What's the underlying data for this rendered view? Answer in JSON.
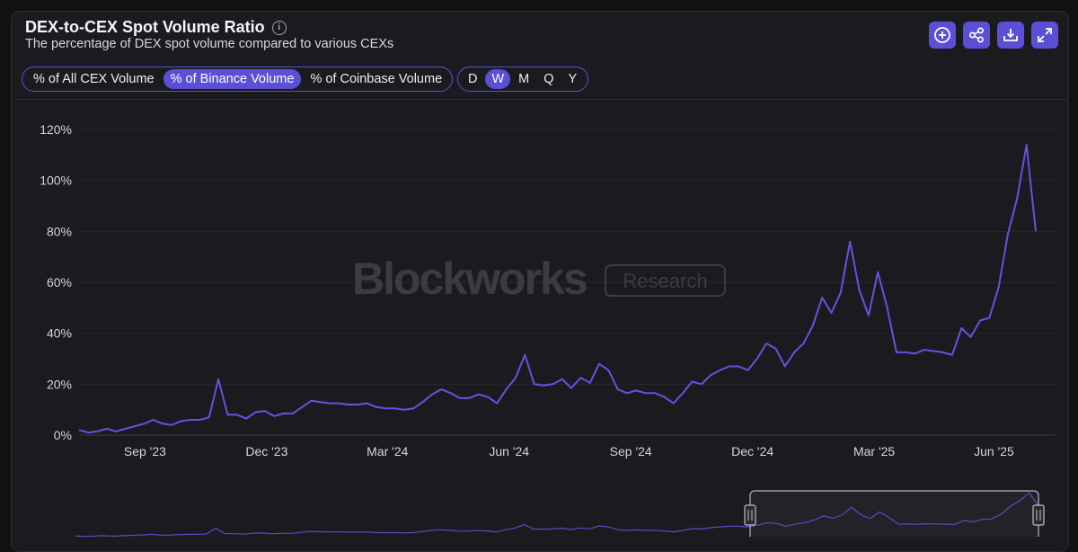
{
  "header": {
    "title": "DEX-to-CEX Spot Volume Ratio",
    "subtitle": "The percentage of DEX spot volume compared to various CEXs",
    "info_icon": "info-icon"
  },
  "actions": [
    {
      "name": "add-button",
      "icon": "plus-circle-icon"
    },
    {
      "name": "share-button",
      "icon": "share-icon"
    },
    {
      "name": "download-button",
      "icon": "download-icon"
    },
    {
      "name": "expand-button",
      "icon": "expand-icon"
    }
  ],
  "metric_toggle": {
    "options": [
      "% of All CEX Volume",
      "% of Binance Volume",
      "% of Coinbase Volume"
    ],
    "selected": "% of Binance Volume"
  },
  "interval_toggle": {
    "options": [
      "D",
      "W",
      "M",
      "Q",
      "Y"
    ],
    "selected": "W"
  },
  "watermark": {
    "brand": "Blockworks",
    "badge": "Research"
  },
  "colors": {
    "accent": "#5b4fd6",
    "line": "#6a4fe0",
    "background": "#1b1b1f"
  },
  "chart_data": {
    "type": "line",
    "title": "DEX-to-CEX Spot Volume Ratio",
    "xlabel": "",
    "ylabel": "",
    "ylim": [
      0,
      120
    ],
    "y_ticks": [
      0,
      20,
      40,
      60,
      80,
      100,
      120
    ],
    "y_tick_labels": [
      "0%",
      "20%",
      "40%",
      "60%",
      "80%",
      "100%",
      "120%"
    ],
    "x_tick_labels": [
      "Sep '23",
      "Dec '23",
      "Mar '24",
      "Jun '24",
      "Sep '24",
      "Dec '24",
      "Mar '25",
      "Jun '25"
    ],
    "x_tick_weeks": [
      7.1,
      20.2,
      33.2,
      46.3,
      59.4,
      72.5,
      85.6,
      98.5
    ],
    "series": [
      {
        "name": "% of Binance Volume",
        "unit": "%",
        "week_index_start": 0,
        "values": [
          2,
          1,
          1.5,
          2.5,
          1.5,
          2.5,
          3.5,
          4.5,
          6,
          4.5,
          4,
          5.5,
          6,
          6,
          7,
          22,
          8,
          8,
          6.5,
          9,
          9.5,
          7.5,
          8.5,
          8.5,
          11,
          13.5,
          13,
          12.5,
          12.5,
          12,
          12,
          12.5,
          11,
          10.5,
          10.5,
          10,
          10.5,
          13,
          16,
          18,
          16.5,
          14.5,
          14.5,
          16,
          15,
          12.5,
          18,
          22.5,
          31.5,
          20,
          19.5,
          20,
          22,
          18.5,
          22.5,
          20.5,
          28,
          25.5,
          18,
          16.5,
          17.5,
          16.5,
          16.5,
          15,
          12.5,
          16.5,
          21,
          20,
          23.5,
          25.5,
          27,
          27,
          25.5,
          30,
          36,
          34,
          27,
          32.5,
          36,
          43,
          54,
          48,
          56,
          76,
          57,
          47,
          64,
          50,
          32.5,
          32.5,
          32,
          33.5,
          33,
          32.5,
          31.5,
          42,
          38.5,
          45,
          46,
          58,
          79,
          93,
          114,
          80
        ]
      }
    ]
  }
}
